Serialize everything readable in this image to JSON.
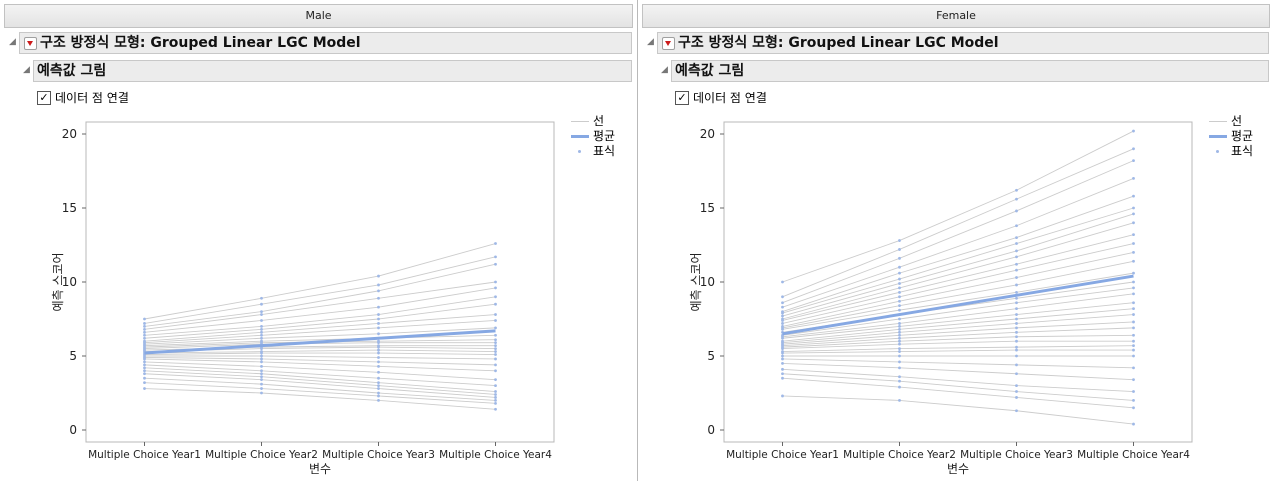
{
  "colors": {
    "line": "#cccccc",
    "mean": "#86a8e3",
    "marker": "#9fb8e6"
  },
  "checkbox_mark": "✓",
  "panels": [
    {
      "group": "Male",
      "report_title": "구조 방정식 모형: Grouped Linear LGC Model",
      "section_title": "예측값 그림",
      "checkbox_label": "데이터 점 연결",
      "legend": {
        "line": "선",
        "mean": "평균",
        "marker": "표식"
      }
    },
    {
      "group": "Female",
      "report_title": "구조 방정식 모형: Grouped Linear LGC Model",
      "section_title": "예측값 그림",
      "checkbox_label": "데이터 점 연결",
      "legend": {
        "line": "선",
        "mean": "평균",
        "marker": "표식"
      }
    }
  ],
  "chart_data": [
    {
      "type": "line",
      "group": "Male",
      "categories": [
        "Multiple Choice Year1",
        "Multiple Choice Year2",
        "Multiple Choice Year3",
        "Multiple Choice Year4"
      ],
      "xlabel": "변수",
      "ylabel": "예측 스코어",
      "ylim": [
        0,
        20
      ],
      "yticks": [
        0,
        5,
        10,
        15,
        20
      ],
      "grid": false,
      "legend_position": "top-right",
      "mean": [
        5.2,
        5.7,
        6.2,
        6.7
      ],
      "lines": [
        [
          7.5,
          8.9,
          10.4,
          12.6
        ],
        [
          7.2,
          8.5,
          9.8,
          11.7
        ],
        [
          7.0,
          8.0,
          9.4,
          11.2
        ],
        [
          6.8,
          7.8,
          8.9,
          10.0
        ],
        [
          6.6,
          7.4,
          8.3,
          9.6
        ],
        [
          6.4,
          7.0,
          7.8,
          9.0
        ],
        [
          6.2,
          6.8,
          7.5,
          8.5
        ],
        [
          6.0,
          6.6,
          7.2,
          7.8
        ],
        [
          5.9,
          6.4,
          6.9,
          7.4
        ],
        [
          5.8,
          6.2,
          6.5,
          6.9
        ],
        [
          5.7,
          6.0,
          6.2,
          6.4
        ],
        [
          5.6,
          5.9,
          6.0,
          6.1
        ],
        [
          5.5,
          5.8,
          5.9,
          5.9
        ],
        [
          5.4,
          5.6,
          5.7,
          5.7
        ],
        [
          5.3,
          5.5,
          5.6,
          5.5
        ],
        [
          5.2,
          5.3,
          5.4,
          5.3
        ],
        [
          5.1,
          5.2,
          5.2,
          5.1
        ],
        [
          5.0,
          5.0,
          4.9,
          4.8
        ],
        [
          4.9,
          4.8,
          4.6,
          4.4
        ],
        [
          4.8,
          4.6,
          4.3,
          4.0
        ],
        [
          4.6,
          4.3,
          3.9,
          3.4
        ],
        [
          4.4,
          4.0,
          3.5,
          3.0
        ],
        [
          4.2,
          3.8,
          3.2,
          2.6
        ],
        [
          4.0,
          3.6,
          3.0,
          2.4
        ],
        [
          3.8,
          3.4,
          2.8,
          2.2
        ],
        [
          3.5,
          3.1,
          2.5,
          2.0
        ],
        [
          3.2,
          2.8,
          2.3,
          1.8
        ],
        [
          2.8,
          2.5,
          2.0,
          1.4
        ]
      ]
    },
    {
      "type": "line",
      "group": "Female",
      "categories": [
        "Multiple Choice Year1",
        "Multiple Choice Year2",
        "Multiple Choice Year3",
        "Multiple Choice Year4"
      ],
      "xlabel": "변수",
      "ylabel": "예측 스코어",
      "ylim": [
        0,
        20
      ],
      "yticks": [
        0,
        5,
        10,
        15,
        20
      ],
      "grid": false,
      "legend_position": "top-right",
      "mean": [
        6.5,
        7.8,
        9.1,
        10.4
      ],
      "lines": [
        [
          10.0,
          12.8,
          16.2,
          20.2
        ],
        [
          9.0,
          12.2,
          15.6,
          19.0
        ],
        [
          8.6,
          11.6,
          14.8,
          18.2
        ],
        [
          8.3,
          11.0,
          13.8,
          17.0
        ],
        [
          8.0,
          10.6,
          13.0,
          15.8
        ],
        [
          7.9,
          10.2,
          12.6,
          15.0
        ],
        [
          7.7,
          9.9,
          12.1,
          14.6
        ],
        [
          7.5,
          9.6,
          11.7,
          14.0
        ],
        [
          7.4,
          9.3,
          11.2,
          13.2
        ],
        [
          7.2,
          9.0,
          10.8,
          12.6
        ],
        [
          7.0,
          8.7,
          10.3,
          12.0
        ],
        [
          6.9,
          8.4,
          9.8,
          11.4
        ],
        [
          6.8,
          8.1,
          9.3,
          10.6
        ],
        [
          6.6,
          7.8,
          8.9,
          10.0
        ],
        [
          6.4,
          7.5,
          8.6,
          9.6
        ],
        [
          6.3,
          7.2,
          8.2,
          9.2
        ],
        [
          6.2,
          7.0,
          7.8,
          8.6
        ],
        [
          6.0,
          6.8,
          7.5,
          8.2
        ],
        [
          5.9,
          6.6,
          7.2,
          7.8
        ],
        [
          5.8,
          6.4,
          6.9,
          7.3
        ],
        [
          5.7,
          6.2,
          6.6,
          6.9
        ],
        [
          5.6,
          6.0,
          6.3,
          6.4
        ],
        [
          5.5,
          5.8,
          6.0,
          6.0
        ],
        [
          5.3,
          5.5,
          5.6,
          5.7
        ],
        [
          5.2,
          5.3,
          5.4,
          5.4
        ],
        [
          5.0,
          5.0,
          5.0,
          5.0
        ],
        [
          4.8,
          4.6,
          4.4,
          4.2
        ],
        [
          4.5,
          4.2,
          3.8,
          3.4
        ],
        [
          4.1,
          3.6,
          3.0,
          2.6
        ],
        [
          3.8,
          3.3,
          2.6,
          2.0
        ],
        [
          3.5,
          2.9,
          2.2,
          1.5
        ],
        [
          2.3,
          2.0,
          1.3,
          0.4
        ]
      ]
    }
  ]
}
